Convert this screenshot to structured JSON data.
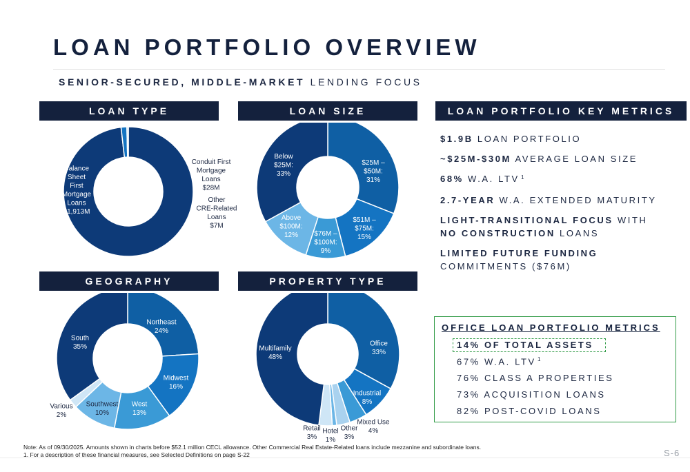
{
  "title": "LOAN PORTFOLIO OVERVIEW",
  "subtitle": {
    "bold": "SENIOR-SECURED, MIDDLE-MARKET",
    "regular": " LENDING FOCUS"
  },
  "headers": {
    "loan_type": "LOAN TYPE",
    "loan_size": "LOAN SIZE",
    "key_metrics": "LOAN PORTFOLIO KEY METRICS",
    "geography": "GEOGRAPHY",
    "property_type": "PROPERTY TYPE"
  },
  "colors": {
    "navy": "#14213d",
    "darkblue": "#0d3a78",
    "medblue": "#0f5fa4",
    "blue": "#1474c2",
    "lightblue": "#3a9ad6",
    "paleblue": "#6cb6e6",
    "verypale": "#a9d2ef",
    "palest": "#cfe6f6",
    "green": "#2e9a44"
  },
  "chart_data": [
    {
      "id": "loan_type",
      "type": "pie",
      "title": "LOAN TYPE",
      "unit": "$M",
      "slices": [
        {
          "label": "Balance Sheet First Mortgage Loans",
          "lines": [
            "Balance",
            "Sheet",
            "First",
            "Mortgage",
            "Loans",
            "$1,913M"
          ],
          "value": 1913,
          "color": "#0d3a78"
        },
        {
          "label": "Conduit First Mortgage Loans",
          "lines": [
            "Conduit First",
            "Mortgage",
            "Loans",
            "$28M"
          ],
          "value": 28,
          "color": "#1474c2"
        },
        {
          "label": "Other CRE-Related Loans",
          "lines": [
            "Other",
            "CRE-Related",
            "Loans",
            "$7M"
          ],
          "value": 7,
          "color": "#a9d2ef"
        }
      ]
    },
    {
      "id": "loan_size",
      "type": "pie",
      "title": "LOAN SIZE",
      "unit": "%",
      "slices": [
        {
          "label": "$25M – $50M",
          "lines": [
            "$25M –",
            "$50M:",
            "31%"
          ],
          "value": 31,
          "color": "#0f5fa4"
        },
        {
          "label": "$51M – $75M",
          "lines": [
            "$51M –",
            "$75M:",
            "15%"
          ],
          "value": 15,
          "color": "#1474c2"
        },
        {
          "label": "$76M – $100M",
          "lines": [
            "$76M –",
            "$100M:",
            "9%"
          ],
          "value": 9,
          "color": "#3a9ad6"
        },
        {
          "label": "Above $100M",
          "lines": [
            "Above",
            "$100M:",
            "12%"
          ],
          "value": 12,
          "color": "#6cb6e6"
        },
        {
          "label": "Below $25M",
          "lines": [
            "Below",
            "$25M:",
            "33%"
          ],
          "value": 33,
          "color": "#0d3a78"
        }
      ]
    },
    {
      "id": "geography",
      "type": "pie",
      "title": "GEOGRAPHY",
      "unit": "%",
      "slices": [
        {
          "label": "Northeast",
          "lines": [
            "Northeast",
            "24%"
          ],
          "value": 24,
          "color": "#0f5fa4"
        },
        {
          "label": "Midwest",
          "lines": [
            "Midwest",
            "16%"
          ],
          "value": 16,
          "color": "#1474c2"
        },
        {
          "label": "West",
          "lines": [
            "West",
            "13%"
          ],
          "value": 13,
          "color": "#3a9ad6"
        },
        {
          "label": "Southwest",
          "lines": [
            "Southwest",
            "10%"
          ],
          "value": 10,
          "color": "#6cb6e6"
        },
        {
          "label": "Various",
          "lines": [
            "Various",
            "2%"
          ],
          "value": 2,
          "color": "#cfe6f6"
        },
        {
          "label": "South",
          "lines": [
            "South",
            "35%"
          ],
          "value": 35,
          "color": "#0d3a78"
        }
      ]
    },
    {
      "id": "property_type",
      "type": "pie",
      "title": "PROPERTY TYPE",
      "unit": "%",
      "slices": [
        {
          "label": "Office",
          "lines": [
            "Office",
            "33%"
          ],
          "value": 33,
          "color": "#0f5fa4"
        },
        {
          "label": "Industrial",
          "lines": [
            "Industrial",
            "8%"
          ],
          "value": 8,
          "color": "#1474c2"
        },
        {
          "label": "Mixed Use",
          "lines": [
            "Mixed Use",
            "4%"
          ],
          "value": 4,
          "color": "#3a9ad6"
        },
        {
          "label": "Other",
          "lines": [
            "Other",
            "3%"
          ],
          "value": 3,
          "color": "#a9d2ef"
        },
        {
          "label": "Hotel",
          "lines": [
            "Hotel",
            "1%"
          ],
          "value": 1,
          "color": "#6cb6e6"
        },
        {
          "label": "Retail",
          "lines": [
            "Retail",
            "3%"
          ],
          "value": 3,
          "color": "#cfe6f6"
        },
        {
          "label": "Multifamily",
          "lines": [
            "Multifamily",
            "48%"
          ],
          "value": 48,
          "color": "#0d3a78"
        }
      ]
    }
  ],
  "key_metrics": [
    {
      "bold": "$1.9B",
      "text": " LOAN PORTFOLIO"
    },
    {
      "bold": "~$25M-$30M",
      "text": " AVERAGE LOAN SIZE"
    },
    {
      "bold": "68%",
      "text": " W.A. LTV",
      "sup": "1"
    },
    {
      "bold": "2.7-YEAR",
      "text": " W.A. EXTENDED MATURITY"
    },
    {
      "bold": "LIGHT-TRANSITIONAL FOCUS",
      "text": " WITH"
    },
    {
      "bold": "NO CONSTRUCTION",
      "text": " LOANS"
    },
    {
      "bold": "LIMITED FUTURE FUNDING",
      "text": ""
    },
    {
      "bold": "",
      "text": "COMMITMENTS ($76M)"
    }
  ],
  "office_metrics": {
    "title": "OFFICE LOAN PORTFOLIO METRICS",
    "items": [
      {
        "text": "14% OF TOTAL ASSETS",
        "bold": true
      },
      {
        "text": "67% W.A. LTV",
        "sup": "1"
      },
      {
        "text": "76% CLASS A PROPERTIES"
      },
      {
        "text": "73% ACQUISITION LOANS"
      },
      {
        "text": "82% POST-COVID LOANS"
      }
    ]
  },
  "notes": [
    "Note: As of 09/30/2025. Amounts shown in charts before $52.1 million CECL allowance. Other Commercial Real Estate-Related loans include mezzanine and subordinate loans.",
    "1. For a description of these financial measures, see Selected Definitions on page S-22"
  ],
  "page_number": "S-6"
}
